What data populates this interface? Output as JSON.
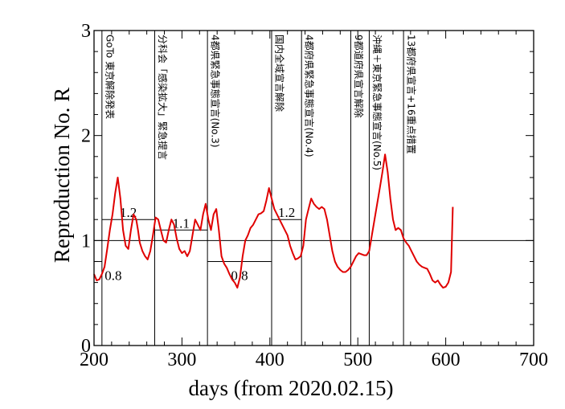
{
  "chart_data": {
    "type": "line",
    "title": "",
    "xlabel": "days   (from 2020.02.15)",
    "ylabel": "Reproduction No.  R",
    "xlim": [
      200,
      700
    ],
    "ylim": [
      0,
      3
    ],
    "x_ticks": [
      "200",
      "300",
      "400",
      "500",
      "600",
      "700"
    ],
    "y_ticks": [
      "0",
      "1",
      "2",
      "3"
    ],
    "grid": false,
    "colors": {
      "series": "#e00000",
      "axes": "#000000"
    },
    "reference_line": {
      "y": 1
    },
    "series": [
      {
        "x": [
          200,
          203,
          206,
          209,
          212,
          215,
          218,
          221,
          224,
          227,
          230,
          233,
          236,
          239,
          242,
          245,
          248,
          250,
          252,
          255,
          258,
          261,
          264,
          267,
          270,
          273,
          276,
          279,
          282,
          285,
          288,
          291,
          294,
          297,
          300,
          303,
          306,
          309,
          312,
          315,
          318,
          321,
          324,
          327,
          330,
          333,
          336,
          339,
          342,
          345,
          348,
          351,
          354,
          357,
          360,
          363,
          366,
          369,
          372,
          375,
          378,
          381,
          384,
          387,
          390,
          393,
          396,
          399,
          402,
          405,
          408,
          411,
          414,
          417,
          420,
          423,
          426,
          429,
          432,
          435,
          438,
          441,
          444,
          447,
          450,
          453,
          456,
          459,
          462,
          465,
          468,
          471,
          474,
          477,
          480,
          483,
          486,
          489,
          492,
          495,
          498,
          501,
          504,
          507,
          510,
          513,
          516,
          519,
          522,
          525,
          528,
          531,
          534,
          537,
          540,
          543,
          546,
          549,
          552,
          555,
          558,
          561,
          564,
          567,
          570,
          573,
          576,
          579,
          582,
          585,
          588,
          591,
          594,
          597,
          600,
          603,
          606,
          608
        ],
        "y": [
          0.68,
          0.62,
          0.63,
          0.68,
          0.75,
          0.92,
          1.1,
          1.25,
          1.45,
          1.6,
          1.4,
          1.1,
          0.95,
          0.92,
          1.1,
          1.25,
          1.2,
          1.1,
          0.98,
          0.9,
          0.85,
          0.82,
          0.9,
          1.05,
          1.22,
          1.2,
          1.1,
          1.0,
          0.98,
          1.1,
          1.2,
          1.15,
          1.02,
          0.92,
          0.88,
          0.9,
          0.85,
          0.9,
          1.05,
          1.2,
          1.15,
          1.1,
          1.25,
          1.35,
          1.2,
          1.1,
          1.25,
          1.3,
          1.1,
          0.85,
          0.78,
          0.74,
          0.68,
          0.63,
          0.6,
          0.55,
          0.65,
          0.85,
          1.0,
          1.05,
          1.12,
          1.15,
          1.2,
          1.25,
          1.26,
          1.28,
          1.38,
          1.5,
          1.4,
          1.3,
          1.25,
          1.2,
          1.15,
          1.1,
          1.05,
          0.95,
          0.88,
          0.82,
          0.83,
          0.85,
          0.95,
          1.2,
          1.3,
          1.4,
          1.35,
          1.32,
          1.3,
          1.32,
          1.3,
          1.2,
          1.05,
          0.9,
          0.8,
          0.75,
          0.72,
          0.7,
          0.7,
          0.72,
          0.75,
          0.8,
          0.85,
          0.88,
          0.87,
          0.86,
          0.86,
          0.9,
          1.05,
          1.2,
          1.35,
          1.5,
          1.65,
          1.82,
          1.65,
          1.4,
          1.2,
          1.1,
          1.12,
          1.1,
          1.02,
          0.98,
          0.95,
          0.9,
          0.85,
          0.8,
          0.77,
          0.75,
          0.74,
          0.73,
          0.68,
          0.62,
          0.6,
          0.62,
          0.58,
          0.55,
          0.56,
          0.6,
          0.7,
          1.32
        ]
      }
    ],
    "bands": [
      {
        "label": "0.8",
        "y": 0.8,
        "x_start": 200,
        "x_end": 209
      },
      {
        "label": "1.2",
        "y": 1.2,
        "x_start": 209,
        "x_end": 269
      },
      {
        "label": "1.1",
        "y": 1.1,
        "x_start": 269,
        "x_end": 329
      },
      {
        "label": "0.8",
        "y": 0.8,
        "x_start": 329,
        "x_end": 402
      },
      {
        "label": "1.2",
        "y": 1.2,
        "x_start": 402,
        "x_end": 436
      }
    ],
    "events": [
      {
        "x": 209,
        "label": "GoTo 東京解除発表"
      },
      {
        "x": 269,
        "label": "分科会「感染拡大」緊急提言"
      },
      {
        "x": 329,
        "label": "4都県緊急事態宣言(No.3)"
      },
      {
        "x": 402,
        "label": "国内全域宣言解除"
      },
      {
        "x": 436,
        "label": "4都府県緊急事態宣言(No.4)"
      },
      {
        "x": 492,
        "label": "9都道府県宣言解除"
      },
      {
        "x": 513,
        "label": "沖縄＋東京緊急事態宣言(No.5)"
      },
      {
        "x": 552,
        "label": "13都府県宣言+16重点措置"
      }
    ]
  }
}
